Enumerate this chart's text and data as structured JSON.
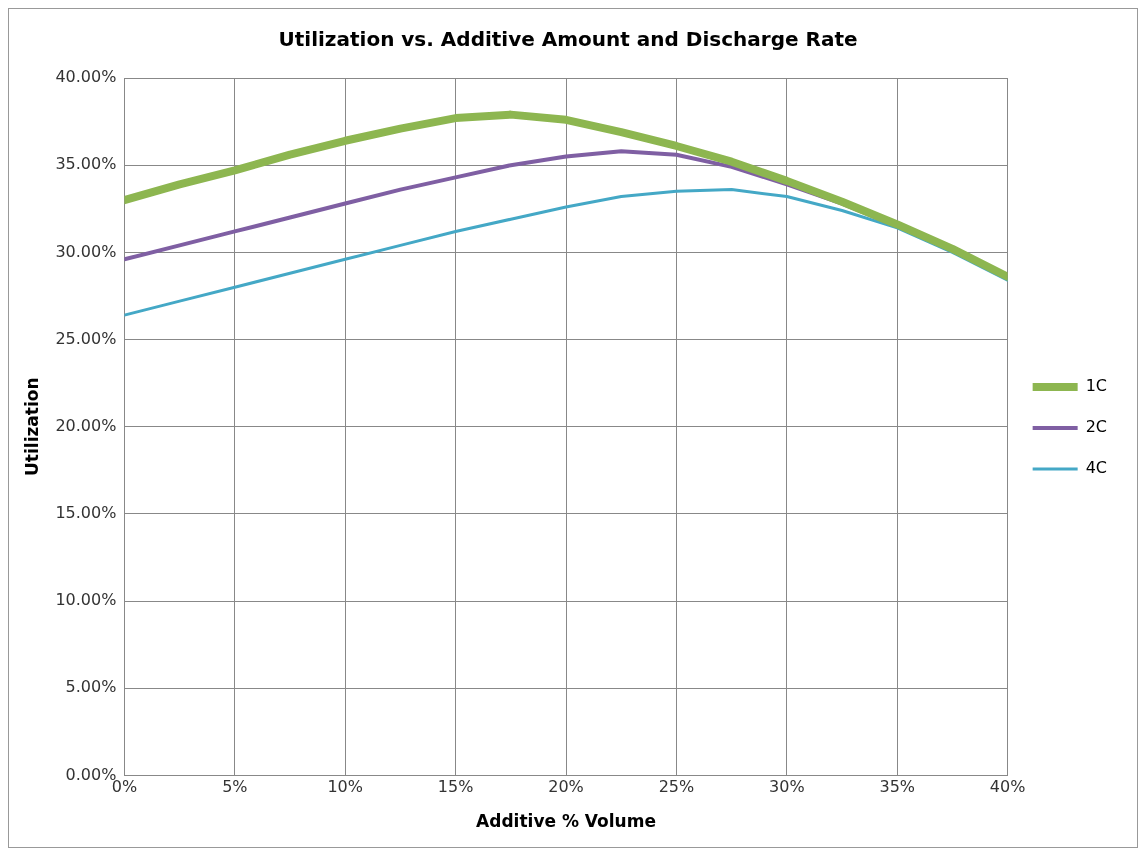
{
  "chart_data": {
    "type": "line",
    "title": "Utilization vs. Additive Amount and Discharge Rate",
    "xlabel": "Additive % Volume",
    "ylabel": "Utilization",
    "x": [
      0,
      2.5,
      5,
      7.5,
      10,
      12.5,
      15,
      17.5,
      20,
      22.5,
      25,
      27.5,
      30,
      32.5,
      35,
      37.5,
      40
    ],
    "series": [
      {
        "name": "1C",
        "color": "#8db650",
        "values": [
          33.0,
          33.9,
          34.7,
          35.6,
          36.4,
          37.1,
          37.7,
          37.9,
          37.6,
          36.9,
          36.1,
          35.2,
          34.1,
          32.9,
          31.6,
          30.2,
          28.6
        ]
      },
      {
        "name": "2C",
        "color": "#7f5fa3",
        "values": [
          29.6,
          30.4,
          31.2,
          32.0,
          32.8,
          33.6,
          34.3,
          35.0,
          35.5,
          35.8,
          35.6,
          34.9,
          33.9,
          32.8,
          31.5,
          null,
          null
        ]
      },
      {
        "name": "4C",
        "color": "#44a8c6",
        "values": [
          26.4,
          27.2,
          28.0,
          28.8,
          29.6,
          30.4,
          31.2,
          31.9,
          32.6,
          33.2,
          33.5,
          33.6,
          33.2,
          32.4,
          31.4,
          30.0,
          28.4
        ]
      }
    ],
    "xlim": [
      0,
      40
    ],
    "xticks": [
      {
        "value": 0,
        "label": "0%"
      },
      {
        "value": 5,
        "label": "5%"
      },
      {
        "value": 10,
        "label": "10%"
      },
      {
        "value": 15,
        "label": "15%"
      },
      {
        "value": 20,
        "label": "20%"
      },
      {
        "value": 25,
        "label": "25%"
      },
      {
        "value": 30,
        "label": "30%"
      },
      {
        "value": 35,
        "label": "35%"
      },
      {
        "value": 40,
        "label": "40%"
      }
    ],
    "ylim": [
      0,
      40
    ],
    "yticks": [
      {
        "value": 0,
        "label": "0.00%"
      },
      {
        "value": 5,
        "label": "5.00%"
      },
      {
        "value": 10,
        "label": "10.00%"
      },
      {
        "value": 15,
        "label": "15.00%"
      },
      {
        "value": 20,
        "label": "20.00%"
      },
      {
        "value": 25,
        "label": "25.00%"
      },
      {
        "value": 30,
        "label": "30.00%"
      },
      {
        "value": 35,
        "label": "35.00%"
      },
      {
        "value": 40,
        "label": "40.00%"
      }
    ],
    "grid": true,
    "legend": "right",
    "marker": "none",
    "line_style": "solid"
  }
}
